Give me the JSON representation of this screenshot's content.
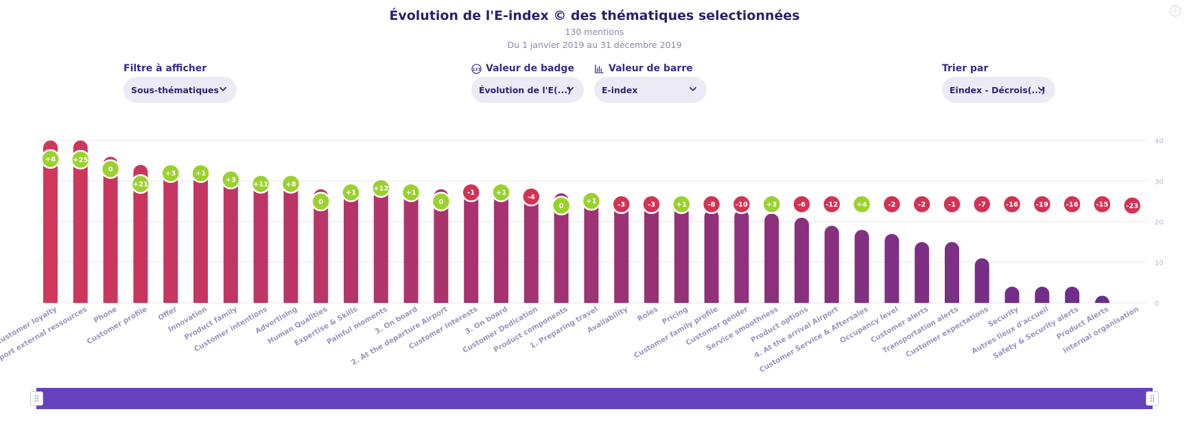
{
  "header": {
    "title": "Évolution de l'E-index © des thématiques selectionnées",
    "mentions": "130 mentions",
    "period": "Du 1 janvier 2019 au 31 décembre 2019"
  },
  "controls": {
    "filter": {
      "label": "Filtre à afficher",
      "value": "Sous-thématiques"
    },
    "badge": {
      "label": "Valeur de badge",
      "value": "Évolution de l'E(...)"
    },
    "bar": {
      "label": "Valeur de barre",
      "value": "E-index"
    },
    "sort": {
      "label": "Trier par",
      "value": "Eindex - Décrois(...)"
    }
  },
  "colors": {
    "accent": "#6441bd",
    "badge_positive": "#9bd12f",
    "badge_negative": "#d23355",
    "bar_high": "#d0375a",
    "bar_low": "#6a2d8d"
  },
  "chart_data": {
    "type": "bar",
    "ylim": [
      0,
      40
    ],
    "yticks": [
      0,
      10,
      20,
      30,
      40
    ],
    "grid": true,
    "categories": [
      "Customer loyalty",
      "Airport external ressources",
      "Phone",
      "Customer profile",
      "Offer",
      "Innovation",
      "Product family",
      "Customer intentions",
      "Advertising",
      "Human Qualities",
      "Expertise & Skills",
      "Painful moments",
      "3. On board",
      "2. At the departure Airport",
      "Customer interests",
      "3. On board",
      "Customer Dedication",
      "Product components",
      "1. Preparing travel",
      "Availability",
      "Roles",
      "Pricing",
      "Customer family profile",
      "Customer gender",
      "Service smoothness",
      "Product options",
      "4. At the arrival Airport",
      "Customer Service & Aftersales",
      "Occupancy level",
      "Customer alerts",
      "Transportation alerts",
      "Customer expectations",
      "Security",
      "Autres lieux d'accueil",
      "Safety & Security alerts",
      "Product Alerts",
      "Internal organisation"
    ],
    "series": [
      {
        "values": [
          40,
          40,
          36,
          34,
          32.5,
          32.5,
          31,
          30,
          30,
          28,
          28,
          29,
          28,
          28,
          28,
          28,
          27,
          27,
          26,
          25,
          25,
          24,
          23,
          23,
          22,
          21,
          19,
          18,
          17,
          15,
          15,
          11,
          4,
          4,
          4,
          1,
          0
        ]
      }
    ],
    "badges": [
      "+8",
      "+25",
      "0",
      "+21",
      "+3",
      "+1",
      "+3",
      "+11",
      "+8",
      "0",
      "+1",
      "+12",
      "+1",
      "0",
      "-1",
      "+1",
      "-4",
      "0",
      "+1",
      "-3",
      "-3",
      "+1",
      "-8",
      "-10",
      "+3",
      "-6",
      "-12",
      "+4",
      "-2",
      "-2",
      "-1",
      "-7",
      "-16",
      "-19",
      "-16",
      "-15",
      "-23"
    ]
  }
}
